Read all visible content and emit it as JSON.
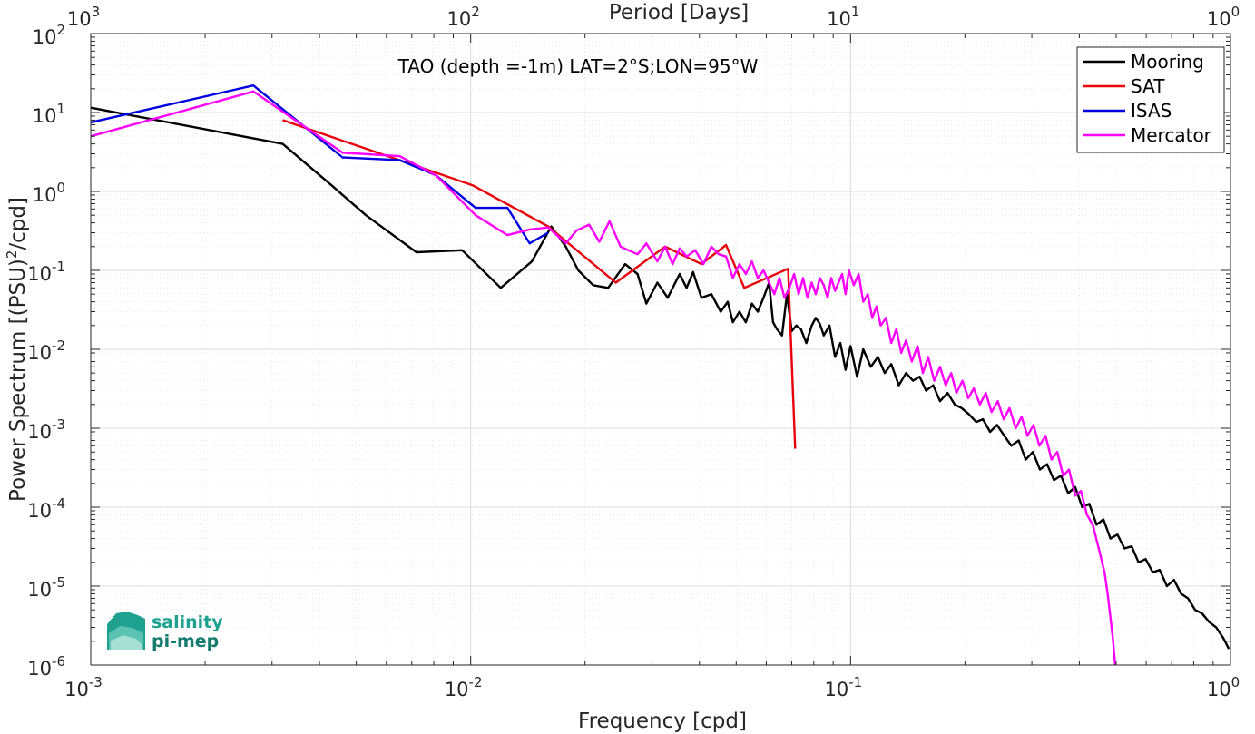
{
  "chart_data": {
    "type": "line",
    "title": "TAO (depth =-1m) LAT=2°S;LON=95°W",
    "xlabel": "Frequency [cpd]",
    "ylabel": "Power Spectrum [(PSU)",
    "ylabel_sup": "2",
    "ylabel_tail": "/cpd]",
    "top_xlabel": "Period [Days]",
    "x_scale": "log",
    "y_scale": "log",
    "xlim": [
      0.001,
      1
    ],
    "ylim": [
      1e-06,
      100
    ],
    "grid": true,
    "minor_grid": true,
    "legend_position": "top-right",
    "x_ticks": [
      {
        "base": "10",
        "exp": "-3",
        "value": 0.001
      },
      {
        "base": "10",
        "exp": "-2",
        "value": 0.01
      },
      {
        "base": "10",
        "exp": "-1",
        "value": 0.1
      },
      {
        "base": "10",
        "exp": "0",
        "value": 1
      }
    ],
    "top_ticks": [
      {
        "base": "10",
        "exp": "3",
        "value": 0.001
      },
      {
        "base": "10",
        "exp": "2",
        "value": 0.01
      },
      {
        "base": "10",
        "exp": "1",
        "value": 0.1
      },
      {
        "base": "10",
        "exp": "0",
        "value": 1
      }
    ],
    "y_ticks": [
      {
        "base": "10",
        "exp": "2",
        "value": 100
      },
      {
        "base": "10",
        "exp": "1",
        "value": 10
      },
      {
        "base": "10",
        "exp": "0",
        "value": 1
      },
      {
        "base": "10",
        "exp": "-1",
        "value": 0.1
      },
      {
        "base": "10",
        "exp": "-2",
        "value": 0.01
      },
      {
        "base": "10",
        "exp": "-3",
        "value": 0.001
      },
      {
        "base": "10",
        "exp": "-4",
        "value": 0.0001
      },
      {
        "base": "10",
        "exp": "-5",
        "value": 1e-05
      },
      {
        "base": "10",
        "exp": "-6",
        "value": 1e-06
      }
    ],
    "series": [
      {
        "name": "Mooring",
        "color": "#000000",
        "points": [
          [
            0.001,
            11.5
          ],
          [
            0.0032,
            4
          ],
          [
            0.0043,
            1.2
          ],
          [
            0.0053,
            0.5
          ],
          [
            0.0072,
            0.17
          ],
          [
            0.0095,
            0.18
          ],
          [
            0.012,
            0.06
          ],
          [
            0.0145,
            0.13
          ],
          [
            0.0163,
            0.36
          ],
          [
            0.0178,
            0.2
          ],
          [
            0.0192,
            0.1
          ],
          [
            0.021,
            0.065
          ],
          [
            0.023,
            0.06
          ],
          [
            0.0255,
            0.12
          ],
          [
            0.0275,
            0.09
          ],
          [
            0.029,
            0.038
          ],
          [
            0.031,
            0.07
          ],
          [
            0.033,
            0.045
          ],
          [
            0.0355,
            0.09
          ],
          [
            0.037,
            0.06
          ],
          [
            0.0385,
            0.095
          ],
          [
            0.0405,
            0.045
          ],
          [
            0.043,
            0.05
          ],
          [
            0.0455,
            0.03
          ],
          [
            0.0475,
            0.04
          ],
          [
            0.049,
            0.022
          ],
          [
            0.051,
            0.03
          ],
          [
            0.053,
            0.022
          ],
          [
            0.055,
            0.038
          ],
          [
            0.057,
            0.03
          ],
          [
            0.059,
            0.045
          ],
          [
            0.061,
            0.07
          ],
          [
            0.0625,
            0.022
          ],
          [
            0.064,
            0.018
          ],
          [
            0.066,
            0.015
          ],
          [
            0.068,
            0.05
          ],
          [
            0.07,
            0.017
          ],
          [
            0.072,
            0.02
          ],
          [
            0.074,
            0.018
          ],
          [
            0.0765,
            0.012
          ],
          [
            0.079,
            0.02
          ],
          [
            0.081,
            0.025
          ],
          [
            0.083,
            0.021
          ],
          [
            0.085,
            0.015
          ],
          [
            0.088,
            0.02
          ],
          [
            0.091,
            0.008
          ],
          [
            0.094,
            0.012
          ],
          [
            0.097,
            0.0055
          ],
          [
            0.1,
            0.011
          ],
          [
            0.104,
            0.0045
          ],
          [
            0.108,
            0.01
          ],
          [
            0.113,
            0.006
          ],
          [
            0.118,
            0.008
          ],
          [
            0.123,
            0.005
          ],
          [
            0.128,
            0.0065
          ],
          [
            0.134,
            0.0035
          ],
          [
            0.14,
            0.005
          ],
          [
            0.146,
            0.004
          ],
          [
            0.152,
            0.0045
          ],
          [
            0.158,
            0.003
          ],
          [
            0.165,
            0.0035
          ],
          [
            0.172,
            0.0022
          ],
          [
            0.18,
            0.0028
          ],
          [
            0.188,
            0.002
          ],
          [
            0.196,
            0.0018
          ],
          [
            0.205,
            0.0015
          ],
          [
            0.214,
            0.0012
          ],
          [
            0.223,
            0.0013
          ],
          [
            0.233,
            0.0009
          ],
          [
            0.243,
            0.0011
          ],
          [
            0.254,
            0.0008
          ],
          [
            0.265,
            0.0006
          ],
          [
            0.277,
            0.0007
          ],
          [
            0.289,
            0.0004
          ],
          [
            0.302,
            0.0005
          ],
          [
            0.315,
            0.0003
          ],
          [
            0.329,
            0.00035
          ],
          [
            0.343,
            0.00022
          ],
          [
            0.358,
            0.00025
          ],
          [
            0.374,
            0.00015
          ],
          [
            0.39,
            0.00018
          ],
          [
            0.407,
            0.0001
          ],
          [
            0.425,
            0.00011
          ],
          [
            0.444,
            6e-05
          ],
          [
            0.463,
            7e-05
          ],
          [
            0.483,
            4e-05
          ],
          [
            0.504,
            4.5e-05
          ],
          [
            0.526,
            3e-05
          ],
          [
            0.549,
            3.2e-05
          ],
          [
            0.573,
            2e-05
          ],
          [
            0.598,
            2.2e-05
          ],
          [
            0.624,
            1.5e-05
          ],
          [
            0.651,
            1.6e-05
          ],
          [
            0.68,
            1e-05
          ],
          [
            0.71,
            1.2e-05
          ],
          [
            0.741,
            8e-06
          ],
          [
            0.773,
            7e-06
          ],
          [
            0.807,
            5e-06
          ],
          [
            0.842,
            4.5e-06
          ],
          [
            0.879,
            3.5e-06
          ],
          [
            0.917,
            3e-06
          ],
          [
            0.957,
            2.2e-06
          ],
          [
            0.99,
            1.6e-06
          ]
        ]
      },
      {
        "name": "SAT",
        "color": "#e8000b",
        "points": [
          [
            0.0032,
            8
          ],
          [
            0.0101,
            1.2
          ],
          [
            0.016,
            0.36
          ],
          [
            0.0241,
            0.07
          ],
          [
            0.0325,
            0.2
          ],
          [
            0.0405,
            0.12
          ],
          [
            0.047,
            0.21
          ],
          [
            0.0525,
            0.06
          ],
          [
            0.0685,
            0.105
          ],
          [
            0.0715,
            0.00055
          ]
        ]
      },
      {
        "name": "ISAS",
        "color": "#0000e0",
        "points": [
          [
            0.001,
            7.5
          ],
          [
            0.00268,
            22
          ],
          [
            0.0046,
            2.7
          ],
          [
            0.0065,
            2.5
          ],
          [
            0.0081,
            1.6
          ],
          [
            0.0103,
            0.62
          ],
          [
            0.0125,
            0.62
          ],
          [
            0.0143,
            0.22
          ],
          [
            0.016,
            0.3
          ]
        ]
      },
      {
        "name": "Mercator",
        "color": "#ff00ff",
        "points": [
          [
            0.001,
            5
          ],
          [
            0.00268,
            18.5
          ],
          [
            0.0046,
            3.1
          ],
          [
            0.0065,
            2.8
          ],
          [
            0.0081,
            1.6
          ],
          [
            0.0103,
            0.5
          ],
          [
            0.0125,
            0.28
          ],
          [
            0.0143,
            0.33
          ],
          [
            0.016,
            0.35
          ],
          [
            0.0178,
            0.22
          ],
          [
            0.019,
            0.32
          ],
          [
            0.0205,
            0.38
          ],
          [
            0.0218,
            0.23
          ],
          [
            0.0232,
            0.42
          ],
          [
            0.0248,
            0.2
          ],
          [
            0.026,
            0.18
          ],
          [
            0.0275,
            0.16
          ],
          [
            0.029,
            0.22
          ],
          [
            0.031,
            0.13
          ],
          [
            0.0325,
            0.2
          ],
          [
            0.034,
            0.12
          ],
          [
            0.0355,
            0.19
          ],
          [
            0.037,
            0.15
          ],
          [
            0.039,
            0.18
          ],
          [
            0.041,
            0.12
          ],
          [
            0.043,
            0.2
          ],
          [
            0.045,
            0.16
          ],
          [
            0.047,
            0.15
          ],
          [
            0.049,
            0.08
          ],
          [
            0.051,
            0.12
          ],
          [
            0.053,
            0.09
          ],
          [
            0.055,
            0.13
          ],
          [
            0.057,
            0.08
          ],
          [
            0.059,
            0.1
          ],
          [
            0.061,
            0.07
          ],
          [
            0.063,
            0.05
          ],
          [
            0.065,
            0.08
          ],
          [
            0.067,
            0.045
          ],
          [
            0.069,
            0.06
          ],
          [
            0.071,
            0.09
          ],
          [
            0.073,
            0.05
          ],
          [
            0.075,
            0.08
          ],
          [
            0.077,
            0.045
          ],
          [
            0.079,
            0.07
          ],
          [
            0.081,
            0.05
          ],
          [
            0.083,
            0.08
          ],
          [
            0.085,
            0.065
          ],
          [
            0.087,
            0.045
          ],
          [
            0.089,
            0.08
          ],
          [
            0.091,
            0.055
          ],
          [
            0.093,
            0.07
          ],
          [
            0.095,
            0.09
          ],
          [
            0.097,
            0.05
          ],
          [
            0.099,
            0.1
          ],
          [
            0.102,
            0.065
          ],
          [
            0.105,
            0.09
          ],
          [
            0.108,
            0.04
          ],
          [
            0.111,
            0.05
          ],
          [
            0.114,
            0.025
          ],
          [
            0.117,
            0.035
          ],
          [
            0.12,
            0.02
          ],
          [
            0.124,
            0.025
          ],
          [
            0.128,
            0.012
          ],
          [
            0.132,
            0.018
          ],
          [
            0.136,
            0.009
          ],
          [
            0.14,
            0.013
          ],
          [
            0.145,
            0.007
          ],
          [
            0.15,
            0.011
          ],
          [
            0.155,
            0.005
          ],
          [
            0.16,
            0.008
          ],
          [
            0.166,
            0.004
          ],
          [
            0.172,
            0.006
          ],
          [
            0.178,
            0.0035
          ],
          [
            0.184,
            0.005
          ],
          [
            0.19,
            0.0028
          ],
          [
            0.197,
            0.004
          ],
          [
            0.204,
            0.0024
          ],
          [
            0.211,
            0.0032
          ],
          [
            0.219,
            0.002
          ],
          [
            0.227,
            0.0028
          ],
          [
            0.235,
            0.0016
          ],
          [
            0.244,
            0.0022
          ],
          [
            0.253,
            0.0013
          ],
          [
            0.262,
            0.0018
          ],
          [
            0.272,
            0.001
          ],
          [
            0.282,
            0.0014
          ],
          [
            0.292,
            0.0008
          ],
          [
            0.303,
            0.0011
          ],
          [
            0.314,
            0.0006
          ],
          [
            0.326,
            0.0008
          ],
          [
            0.338,
            0.0004
          ],
          [
            0.35,
            0.0005
          ],
          [
            0.363,
            0.00025
          ],
          [
            0.376,
            0.0003
          ],
          [
            0.39,
            0.00014
          ],
          [
            0.404,
            0.00016
          ],
          [
            0.419,
            8e-05
          ],
          [
            0.434,
            6e-05
          ],
          [
            0.45,
            3e-05
          ],
          [
            0.466,
            1.5e-05
          ],
          [
            0.475,
            8e-06
          ],
          [
            0.483,
            4e-06
          ],
          [
            0.49,
            2.2e-06
          ],
          [
            0.497,
            1e-06
          ]
        ]
      }
    ]
  },
  "logo": {
    "line1": "salinity",
    "line2": "pi-mep",
    "color1": "#1ea28f",
    "color2": "#137a6d"
  }
}
